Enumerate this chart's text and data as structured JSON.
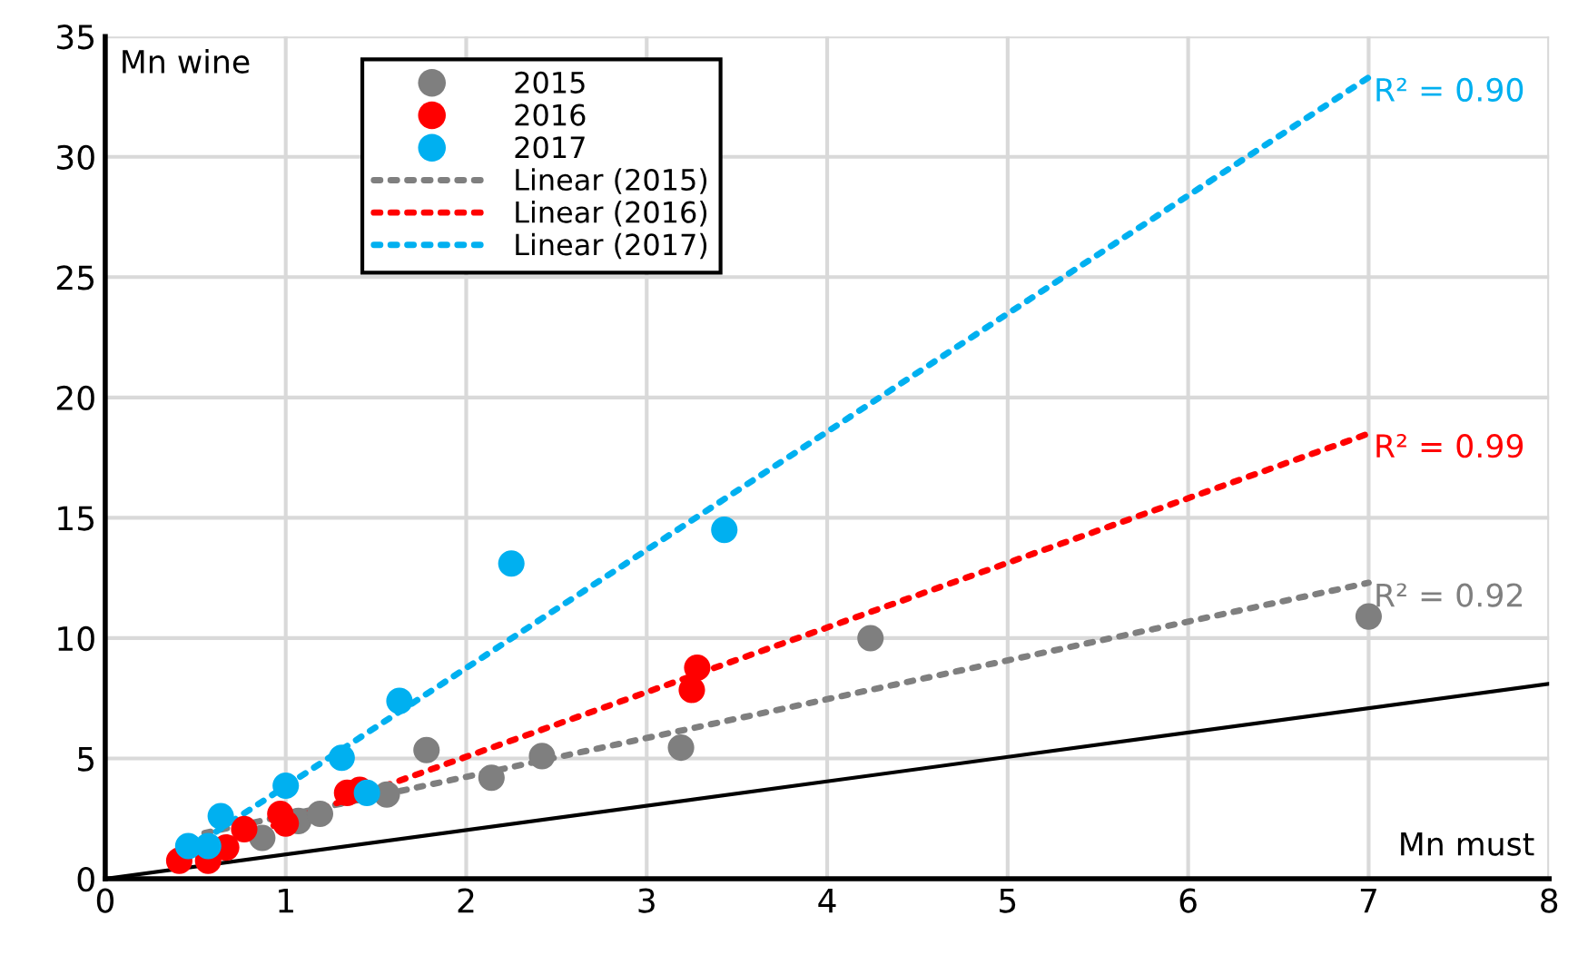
{
  "chart_data": {
    "type": "scatter",
    "xlabel": "Mn must",
    "ylabel": "Mn wine",
    "xlim": [
      0,
      8
    ],
    "ylim": [
      0,
      35
    ],
    "xticks": [
      0,
      1,
      2,
      3,
      4,
      5,
      6,
      7,
      8
    ],
    "yticks": [
      0,
      5,
      10,
      15,
      20,
      25,
      30,
      35
    ],
    "grid": true,
    "legend": "top left",
    "marker": "circle",
    "series": [
      {
        "name": "2015",
        "color": "#7f7f7f",
        "x": [
          0.87,
          1.07,
          1.19,
          1.56,
          1.78,
          2.14,
          2.42,
          3.19,
          4.24,
          7.0
        ],
        "values": [
          1.7,
          2.4,
          2.7,
          3.5,
          5.35,
          4.2,
          5.1,
          5.45,
          10.0,
          10.9
        ]
      },
      {
        "name": "2016",
        "color": "#ff0000",
        "x": [
          0.41,
          0.57,
          0.67,
          0.77,
          0.97,
          1.0,
          1.34,
          1.41,
          3.25,
          3.28
        ],
        "values": [
          0.75,
          0.75,
          1.3,
          2.06,
          2.7,
          2.3,
          3.57,
          3.7,
          7.85,
          8.77
        ]
      },
      {
        "name": "2017",
        "color": "#00b0f0",
        "x": [
          0.46,
          0.57,
          0.64,
          1.0,
          1.31,
          1.45,
          1.63,
          2.25,
          3.43
        ],
        "values": [
          1.36,
          1.36,
          2.6,
          3.87,
          5.03,
          3.57,
          7.39,
          13.1,
          14.5
        ]
      },
      {
        "name": "Linear (2015)",
        "type": "line",
        "line_style": "dotted",
        "marker": "none",
        "color": "#7f7f7f",
        "x": [
          0.55,
          7.0
        ],
        "values": [
          1.9,
          12.3
        ]
      },
      {
        "name": "Linear (2016)",
        "type": "line",
        "line_style": "dotted",
        "marker": "none",
        "color": "#ff0000",
        "x": [
          0.41,
          7.0
        ],
        "values": [
          0.8,
          18.5
        ]
      },
      {
        "name": "Linear (2017)",
        "type": "line",
        "line_style": "dotted",
        "marker": "none",
        "color": "#00b0f0",
        "x": [
          0.46,
          7.0
        ],
        "values": [
          1.2,
          33.3
        ]
      },
      {
        "type": "line",
        "line_style": "solid",
        "marker": "none",
        "color": "#000000",
        "x": [
          0,
          8
        ],
        "values": [
          0,
          8.1
        ]
      }
    ],
    "annotations": [
      "R² = 0.92",
      "R² = 0.99",
      "R² = 0.90"
    ]
  }
}
